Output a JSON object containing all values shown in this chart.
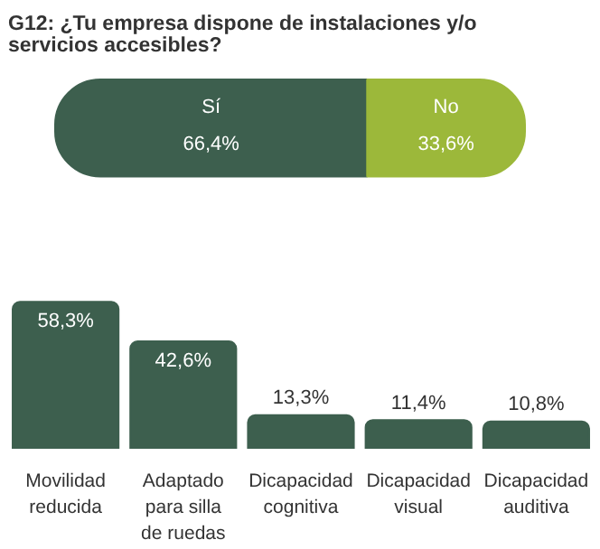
{
  "chart_data": [
    {
      "type": "bar",
      "title": "G12: ¿Tu empresa dispone de instalaciones y/o servicios accesibles?",
      "orientation": "horizontal",
      "stacked": true,
      "categories": [
        null
      ],
      "tick_labels": false,
      "grid": false,
      "series": [
        {
          "name": "Sí",
          "color": "#3d5f4e",
          "values": [
            66.4
          ],
          "value_labels": [
            "66,4%"
          ]
        },
        {
          "name": "No",
          "color": "#9cb83a",
          "values": [
            33.6
          ],
          "value_labels": [
            "33,6%"
          ]
        }
      ]
    },
    {
      "type": "bar",
      "categories": [
        "Movilidad reducida",
        "Adaptado para silla de ruedas",
        "Dicapacidad cognitiva",
        "Dicapacidad visual",
        "Dicapacidad auditiva"
      ],
      "values": [
        58.3,
        42.6,
        13.3,
        11.4,
        10.8
      ],
      "value_labels": [
        "58,3%",
        "42,6%",
        "13,3%",
        "11,4%",
        "10,8%"
      ],
      "color": "#3d5f4e",
      "tick_labels": "x",
      "grid": false
    }
  ]
}
